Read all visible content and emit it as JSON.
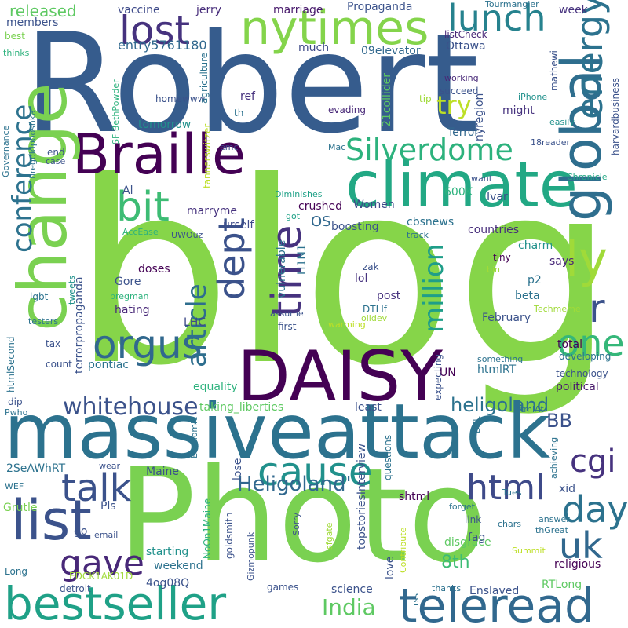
{
  "words": [
    {
      "text": "blog",
      "color": "#86d549"
    },
    {
      "text": "Robert",
      "color": "#365c8d"
    },
    {
      "text": "Photo",
      "color": "#7ad151"
    },
    {
      "text": "massiveattack",
      "color": "#2c728e"
    },
    {
      "text": "Braille",
      "color": "#440154"
    },
    {
      "text": "climate",
      "color": "#22a884"
    },
    {
      "text": "DAISY",
      "color": "#440154"
    },
    {
      "text": "change",
      "color": "#7ad151"
    },
    {
      "text": "bestseller",
      "color": "#1fa187"
    },
    {
      "text": "teleread",
      "color": "#31688e"
    },
    {
      "text": "nytimes",
      "color": "#84d44b"
    },
    {
      "text": "global",
      "color": "#2e6e8e"
    },
    {
      "text": "energy",
      "color": "#2c728e"
    },
    {
      "text": "lost",
      "color": "#46327e"
    },
    {
      "text": "lunch",
      "color": "#26828e"
    },
    {
      "text": "Silverdome",
      "color": "#2db27d"
    },
    {
      "text": "orgus",
      "color": "#31688e"
    },
    {
      "text": "bit",
      "color": "#3dbc74"
    },
    {
      "text": "time",
      "color": "#46327e"
    },
    {
      "text": "list",
      "color": "#3b528b"
    },
    {
      "text": "conference",
      "color": "#2c728e"
    },
    {
      "text": "talk",
      "color": "#3b528b"
    },
    {
      "text": "uk",
      "color": "#31688e"
    },
    {
      "text": "cause",
      "color": "#21918c"
    },
    {
      "text": "html",
      "color": "#3e4a89"
    },
    {
      "text": "day",
      "color": "#2c728e"
    },
    {
      "text": "one",
      "color": "#35b779"
    },
    {
      "text": "ly",
      "color": "#a0da39"
    },
    {
      "text": "gave",
      "color": "#482878"
    },
    {
      "text": "whitehouse",
      "color": "#3b528b"
    },
    {
      "text": "dept",
      "color": "#3b528b"
    },
    {
      "text": "article",
      "color": "#2e6e8e"
    },
    {
      "text": "million",
      "color": "#1f9e89"
    },
    {
      "text": "r",
      "color": "#3b528b"
    },
    {
      "text": "India",
      "color": "#5ec962"
    },
    {
      "text": "Heligoland'",
      "color": "#31688e"
    },
    {
      "text": "heligoland",
      "color": "#2c728e"
    },
    {
      "text": "cgi",
      "color": "#46327e"
    },
    {
      "text": "BB",
      "color": "#3b528b"
    },
    {
      "text": "8th",
      "color": "#3dbc74"
    },
    {
      "text": "try",
      "color": "#bddf26"
    },
    {
      "text": "released",
      "color": "#5ec962"
    },
    {
      "text": "members",
      "color": "#3b528b"
    },
    {
      "text": "best",
      "color": "#7ad151"
    },
    {
      "text": "thinks",
      "color": "#2db27d"
    },
    {
      "text": "vaccine",
      "color": "#3e4a89"
    },
    {
      "text": "jerry",
      "color": "#472d7b"
    },
    {
      "text": "marriage",
      "color": "#481a6c"
    },
    {
      "text": "Propaganda",
      "color": "#3b528b"
    },
    {
      "text": "Tourmangler",
      "color": "#2c728e"
    },
    {
      "text": "week",
      "color": "#46327e"
    },
    {
      "text": "entry5761180",
      "color": "#31688e"
    },
    {
      "text": "much",
      "color": "#3e4a89"
    },
    {
      "text": "09elevator",
      "color": "#31688e"
    },
    {
      "text": "Ottawa",
      "color": "#3b528b"
    },
    {
      "text": "listCheck",
      "color": "#482878"
    },
    {
      "text": "working",
      "color": "#482878"
    },
    {
      "text": "succeed",
      "color": "#3b528b"
    },
    {
      "text": "iPhone",
      "color": "#21918c"
    },
    {
      "text": "ref",
      "color": "#46327e"
    },
    {
      "text": "th",
      "color": "#2c728e"
    },
    {
      "text": "evading",
      "color": "#482878"
    },
    {
      "text": "tip",
      "color": "#a0da39"
    },
    {
      "text": "might",
      "color": "#46327e"
    },
    {
      "text": "easily",
      "color": "#21918c"
    },
    {
      "text": "Terror",
      "color": "#31688e"
    },
    {
      "text": "18reader",
      "color": "#3b528b"
    },
    {
      "text": "homewww",
      "color": "#3b528b"
    },
    {
      "text": "tomorrow",
      "color": "#21918c"
    },
    {
      "text": "end",
      "color": "#3b528b"
    },
    {
      "text": "case",
      "color": "#3b528b"
    },
    {
      "text": "emc",
      "color": "#3e4a89"
    },
    {
      "text": "Mac",
      "color": "#2c728e"
    },
    {
      "text": "Al",
      "color": "#3b528b"
    },
    {
      "text": "600K",
      "color": "#2db27d"
    },
    {
      "text": "Ivar",
      "color": "#3b528b"
    },
    {
      "text": "want",
      "color": "#3b528b"
    },
    {
      "text": "Chronicle",
      "color": "#22a884"
    },
    {
      "text": "Diminishes",
      "color": "#1fa187"
    },
    {
      "text": "crushed",
      "color": "#440154"
    },
    {
      "text": "Women",
      "color": "#3e4a89"
    },
    {
      "text": "marryme",
      "color": "#46327e"
    },
    {
      "text": "urself",
      "color": "#3e4a89"
    },
    {
      "text": "got",
      "color": "#1fa187"
    },
    {
      "text": "OS",
      "color": "#31688e"
    },
    {
      "text": "boosting",
      "color": "#3b528b"
    },
    {
      "text": "cbsnews",
      "color": "#2c728e"
    },
    {
      "text": "countries",
      "color": "#472d7b"
    },
    {
      "text": "charm",
      "color": "#21918c"
    },
    {
      "text": "AccEase",
      "color": "#2db27d"
    },
    {
      "text": "UWOuz",
      "color": "#3b528b"
    },
    {
      "text": "track",
      "color": "#2c728e"
    },
    {
      "text": "says",
      "color": "#482878"
    },
    {
      "text": "tiny",
      "color": "#440154"
    },
    {
      "text": "zak",
      "color": "#3b528b"
    },
    {
      "text": "bin",
      "color": "#a0da39"
    },
    {
      "text": "p2",
      "color": "#2c728e"
    },
    {
      "text": "doses",
      "color": "#440154"
    },
    {
      "text": "Gore",
      "color": "#3b528b"
    },
    {
      "text": "lol",
      "color": "#46327e"
    },
    {
      "text": "post",
      "color": "#46327e"
    },
    {
      "text": "beta",
      "color": "#2c728e"
    },
    {
      "text": "February",
      "color": "#3b528b"
    },
    {
      "text": "LHC",
      "color": "#3e4a89"
    },
    {
      "text": "hating",
      "color": "#482878"
    },
    {
      "text": "bregman",
      "color": "#2db27d"
    },
    {
      "text": "tweets",
      "color": "#21918c"
    },
    {
      "text": "lgbt",
      "color": "#2c728e"
    },
    {
      "text": "testers",
      "color": "#2c728e"
    },
    {
      "text": "Techmeme",
      "color": "#a0da39"
    },
    {
      "text": "DTLIf",
      "color": "#2c728e"
    },
    {
      "text": "first",
      "color": "#3b528b"
    },
    {
      "text": "assume",
      "color": "#3b528b"
    },
    {
      "text": "olidev",
      "color": "#a0da39"
    },
    {
      "text": "warming",
      "color": "#bddf26"
    },
    {
      "text": "tax",
      "color": "#3b528b"
    },
    {
      "text": "count",
      "color": "#3b528b"
    },
    {
      "text": "total",
      "color": "#440154"
    },
    {
      "text": "developing",
      "color": "#2c728e"
    },
    {
      "text": "technology",
      "color": "#3b528b"
    },
    {
      "text": "something",
      "color": "#2c728e"
    },
    {
      "text": "htmlRT",
      "color": "#2c728e"
    },
    {
      "text": "political",
      "color": "#481a6c"
    },
    {
      "text": "pontiac",
      "color": "#2c728e"
    },
    {
      "text": "equality",
      "color": "#2db27d"
    },
    {
      "text": "expecting",
      "color": "#3b528b"
    },
    {
      "text": "UN",
      "color": "#440154"
    },
    {
      "text": "taking_liberties",
      "color": "#5ec962"
    },
    {
      "text": "least",
      "color": "#3b528b"
    },
    {
      "text": "htmlAt",
      "color": "#2c728e"
    },
    {
      "text": "dip",
      "color": "#3b528b"
    },
    {
      "text": "Pwho",
      "color": "#2c728e"
    },
    {
      "text": "2SeAWhRT",
      "color": "#2c728e"
    },
    {
      "text": "wear",
      "color": "#3b528b"
    },
    {
      "text": "WEF",
      "color": "#2c728e"
    },
    {
      "text": "Grutle",
      "color": "#7ad151"
    },
    {
      "text": "Pls",
      "color": "#3b528b"
    },
    {
      "text": "go",
      "color": "#3b528b"
    },
    {
      "text": "email",
      "color": "#3b528b"
    },
    {
      "text": "Maine",
      "color": "#3b528b"
    },
    {
      "text": "NoOn1Maine",
      "color": "#2db27d"
    },
    {
      "text": "goldsmith",
      "color": "#3b528b"
    },
    {
      "text": "Gizmopunk",
      "color": "#3b528b"
    },
    {
      "text": "Long",
      "color": "#2c728e"
    },
    {
      "text": "EDCK1AK01D",
      "color": "#a0da39"
    },
    {
      "text": "detroit",
      "color": "#3b528b"
    },
    {
      "text": "4og08Q",
      "color": "#3b528b"
    },
    {
      "text": "starting",
      "color": "#21918c"
    },
    {
      "text": "weekend",
      "color": "#2c728e"
    },
    {
      "text": "games",
      "color": "#3b528b"
    },
    {
      "text": "science",
      "color": "#3b528b"
    },
    {
      "text": "Enslaved",
      "color": "#3b528b"
    },
    {
      "text": "RTLong",
      "color": "#5ec962"
    },
    {
      "text": "thanks",
      "color": "#2c728e"
    },
    {
      "text": "rss",
      "color": "#2c728e"
    },
    {
      "text": "Contribute",
      "color": "#bddf26"
    },
    {
      "text": "love",
      "color": "#3b528b"
    },
    {
      "text": "topstoriesInterview",
      "color": "#3b528b"
    },
    {
      "text": "questions",
      "color": "#2c728e"
    },
    {
      "text": "shtml",
      "color": "#440154"
    },
    {
      "text": "xid",
      "color": "#3b528b"
    },
    {
      "text": "Tues",
      "color": "#2c728e"
    },
    {
      "text": "link",
      "color": "#3b528b"
    },
    {
      "text": "chars",
      "color": "#2c728e"
    },
    {
      "text": "forget",
      "color": "#2c728e"
    },
    {
      "text": "answer",
      "color": "#2c728e"
    },
    {
      "text": "achieving",
      "color": "#2c728e"
    },
    {
      "text": "thGreat",
      "color": "#2c728e"
    },
    {
      "text": "disgrace",
      "color": "#5ec962"
    },
    {
      "text": "Sorry",
      "color": "#3b528b"
    },
    {
      "text": "sfgate",
      "color": "#a0da39"
    },
    {
      "text": "Summit",
      "color": "#bddf26"
    },
    {
      "text": "fag",
      "color": "#3b528b"
    },
    {
      "text": "religious",
      "color": "#440154"
    },
    {
      "text": "lose",
      "color": "#3b528b"
    },
    {
      "text": "Economic",
      "color": "#2c728e"
    },
    {
      "text": "DTL",
      "color": "#2c728e"
    },
    {
      "text": "vulnerable",
      "color": "#2c728e"
    },
    {
      "text": "H1N1",
      "color": "#2c728e"
    },
    {
      "text": "terrorpropaganda",
      "color": "#3b528b"
    },
    {
      "text": "htmlSecond",
      "color": "#2c728e"
    },
    {
      "text": "Governance",
      "color": "#2c728e"
    },
    {
      "text": "SF BethPowder",
      "color": "#2db27d"
    },
    {
      "text": "firegoldpooshka",
      "color": "#2c728e"
    },
    {
      "text": "agriculture",
      "color": "#2c728e"
    },
    {
      "text": "tannerswitzer",
      "color": "#bddf26"
    },
    {
      "text": "21collider",
      "color": "#5ec962"
    },
    {
      "text": "nyregion",
      "color": "#3b528b"
    },
    {
      "text": "mathewi",
      "color": "#3b528b"
    },
    {
      "text": "harvardbusiness",
      "color": "#3b528b"
    }
  ]
}
